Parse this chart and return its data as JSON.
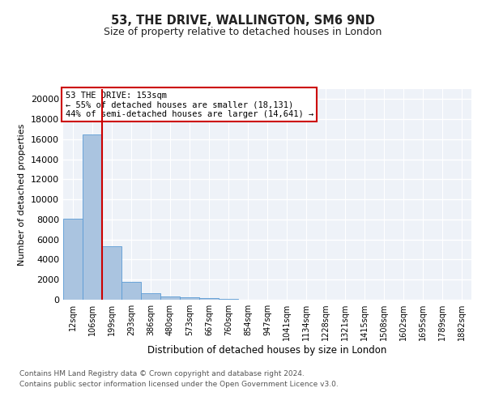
{
  "title1": "53, THE DRIVE, WALLINGTON, SM6 9ND",
  "title2": "Size of property relative to detached houses in London",
  "xlabel": "Distribution of detached houses by size in London",
  "ylabel": "Number of detached properties",
  "categories": [
    "12sqm",
    "106sqm",
    "199sqm",
    "293sqm",
    "386sqm",
    "480sqm",
    "573sqm",
    "667sqm",
    "760sqm",
    "854sqm",
    "947sqm",
    "1041sqm",
    "1134sqm",
    "1228sqm",
    "1321sqm",
    "1415sqm",
    "1508sqm",
    "1602sqm",
    "1695sqm",
    "1789sqm",
    "1882sqm"
  ],
  "bar_values": [
    8100,
    16500,
    5300,
    1800,
    650,
    350,
    250,
    200,
    100,
    0,
    0,
    0,
    0,
    0,
    0,
    0,
    0,
    0,
    0,
    0,
    0
  ],
  "bar_color": "#aac4e0",
  "bar_edge_color": "#5b9bd5",
  "ylim": [
    0,
    21000
  ],
  "yticks": [
    0,
    2000,
    4000,
    6000,
    8000,
    10000,
    12000,
    14000,
    16000,
    18000,
    20000
  ],
  "annotation_line1": "53 THE DRIVE: 153sqm",
  "annotation_line2": "← 55% of detached houses are smaller (18,131)",
  "annotation_line3": "44% of semi-detached houses are larger (14,641) →",
  "annotation_box_color": "#ffffff",
  "annotation_box_edge": "#cc0000",
  "footnote1": "Contains HM Land Registry data © Crown copyright and database right 2024.",
  "footnote2": "Contains public sector information licensed under the Open Government Licence v3.0.",
  "background_color": "#eef2f8",
  "grid_color": "#ffffff",
  "fig_background": "#ffffff",
  "red_line_color": "#cc0000"
}
